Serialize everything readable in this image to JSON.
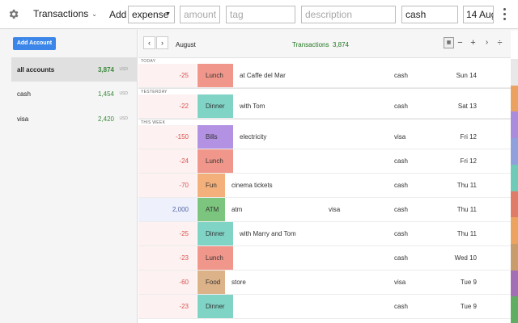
{
  "topbar": {
    "view_label": "Transactions",
    "add_label": "Add",
    "type_value": "expense",
    "amount_placeholder": "amount",
    "tag_placeholder": "tag",
    "description_placeholder": "description",
    "account_value": "cash",
    "date_value": "14 Aug"
  },
  "sidebar": {
    "add_account_label": "Add Account",
    "accounts": [
      {
        "name": "all accounts",
        "amount": "3,874",
        "currency": "USD"
      },
      {
        "name": "cash",
        "amount": "1,454",
        "currency": "USD"
      },
      {
        "name": "visa",
        "amount": "2,420",
        "currency": "USD"
      }
    ]
  },
  "header": {
    "prev": "‹",
    "next": "›",
    "month": "August",
    "count_label": "Transactions",
    "count_value": "3,874",
    "tools": {
      "select": "▦",
      "minus": "−",
      "plus": "+",
      "chevron": "›",
      "divide": "÷"
    }
  },
  "sections": {
    "today": "TODAY",
    "yesterday": "YESTERDAY",
    "this_week": "THIS WEEK"
  },
  "transactions": [
    {
      "amount": "-25",
      "tag": "Lunch",
      "tag_color": "#f0968a",
      "description": "at Caffe del Mar",
      "account": "cash",
      "to_account": "",
      "date": "Sun 14"
    },
    {
      "amount": "-22",
      "tag": "Dinner",
      "tag_color": "#7fd4c6",
      "description": "with Tom",
      "account": "cash",
      "to_account": "",
      "date": "Sat 13"
    },
    {
      "amount": "-150",
      "tag": "Bills",
      "tag_color": "#b391e3",
      "description": "electricity",
      "account": "visa",
      "to_account": "",
      "date": "Fri 12"
    },
    {
      "amount": "-24",
      "tag": "Lunch",
      "tag_color": "#f0968a",
      "description": "",
      "account": "cash",
      "to_account": "",
      "date": "Fri 12"
    },
    {
      "amount": "-70",
      "tag": "Fun",
      "tag_color": "#f4b07a",
      "description": "cinema tickets",
      "account": "cash",
      "to_account": "",
      "date": "Thu 11"
    },
    {
      "amount": "2,000",
      "tag": "ATM",
      "tag_color": "#7cc57e",
      "description": "atm",
      "account": "cash",
      "to_account": "visa",
      "date": "Thu 11"
    },
    {
      "amount": "-25",
      "tag": "Dinner",
      "tag_color": "#7fd4c6",
      "description": "with Marry and Tom",
      "account": "cash",
      "to_account": "",
      "date": "Thu 11"
    },
    {
      "amount": "-23",
      "tag": "Lunch",
      "tag_color": "#f0968a",
      "description": "",
      "account": "cash",
      "to_account": "",
      "date": "Wed 10"
    },
    {
      "amount": "-60",
      "tag": "Food",
      "tag_color": "#dcb388",
      "description": "store",
      "account": "visa",
      "to_account": "",
      "date": "Tue 9"
    },
    {
      "amount": "-23",
      "tag": "Dinner",
      "tag_color": "#7fd4c6",
      "description": "",
      "account": "cash",
      "to_account": "",
      "date": "Tue 9"
    }
  ],
  "strip_colors": [
    "#e8e8e8",
    "#eba15f",
    "#a98ddc",
    "#8fa0dd",
    "#6fcab8",
    "#e07b68",
    "#eba35f",
    "#c99c6c",
    "#a36fb4",
    "#5fae62"
  ]
}
